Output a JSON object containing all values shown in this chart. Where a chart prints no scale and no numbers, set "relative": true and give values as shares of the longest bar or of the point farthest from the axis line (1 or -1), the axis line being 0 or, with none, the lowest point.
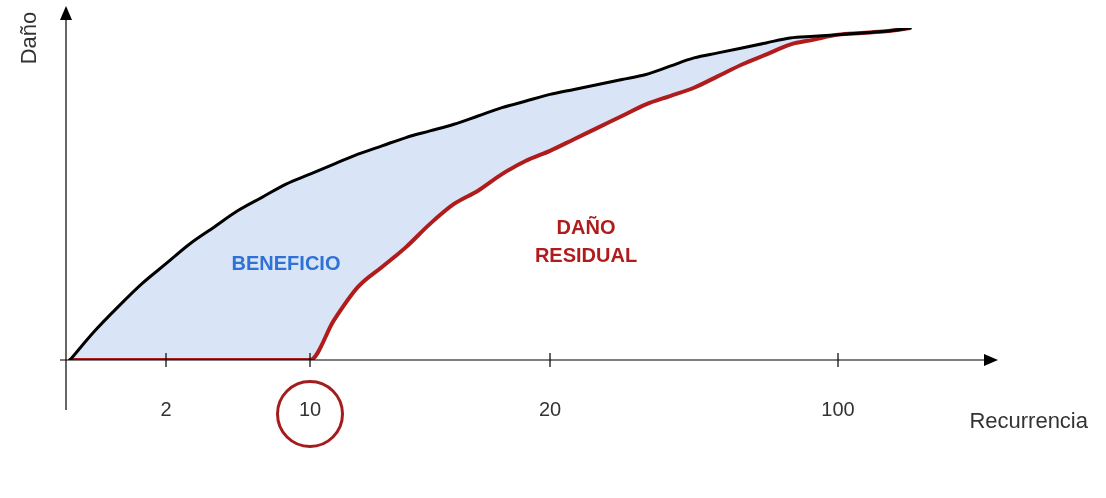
{
  "chart_data": {
    "type": "line",
    "relative": true,
    "xlabel": "Recurrencia",
    "ylabel": "Daño",
    "categories": [
      null,
      null,
      null,
      null,
      "2",
      null,
      null,
      null,
      null,
      null,
      "10",
      null,
      null,
      null,
      null,
      null,
      null,
      null,
      null,
      null,
      "20",
      null,
      null,
      null,
      null,
      null,
      null,
      null,
      null,
      null,
      null,
      null,
      "100",
      null,
      null,
      null
    ],
    "series": [
      {
        "color": "#000000",
        "values": [
          0,
          0.085,
          0.16,
          0.23,
          0.29,
          0.35,
          0.4,
          0.45,
          0.49,
          0.53,
          0.56,
          0.59,
          0.62,
          0.645,
          0.67,
          0.69,
          0.71,
          0.735,
          0.76,
          0.78,
          0.8,
          0.815,
          0.83,
          0.845,
          0.86,
          0.885,
          0.91,
          0.925,
          0.94,
          0.955,
          0.97,
          0.975,
          0.98,
          0.985,
          0.99,
          1
        ]
      },
      {
        "color": "#b01c1c",
        "values": [
          0,
          0,
          0,
          0,
          0,
          0,
          0,
          0,
          0,
          0,
          0,
          0.12,
          0.22,
          0.28,
          0.34,
          0.41,
          0.47,
          0.51,
          0.56,
          0.6,
          0.63,
          0.665,
          0.7,
          0.735,
          0.77,
          0.795,
          0.82,
          0.855,
          0.89,
          0.92,
          0.95,
          0.965,
          0.98,
          0.985,
          0.99,
          1
        ]
      }
    ],
    "annotations": [
      "BENEFICIO",
      "DAÑO RESIDUAL"
    ],
    "grid": false,
    "legend": false,
    "marker": "none",
    "line_style": "solid"
  }
}
